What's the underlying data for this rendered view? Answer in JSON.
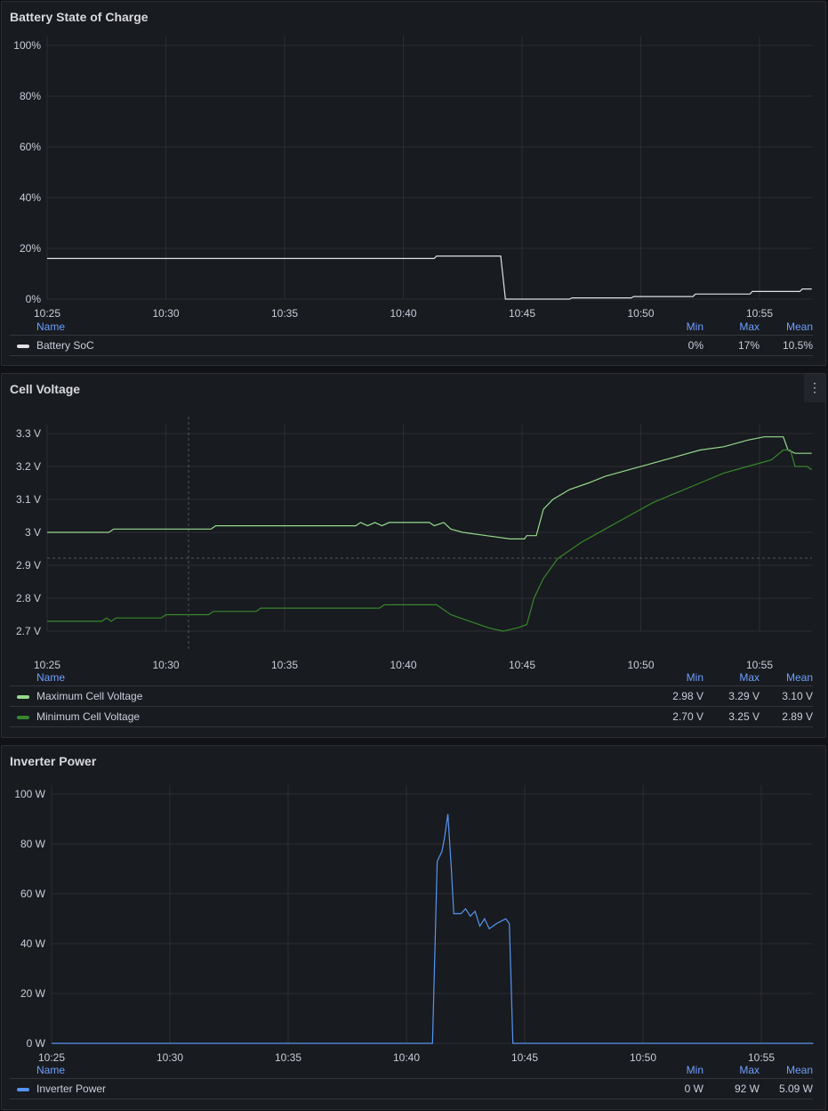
{
  "chart_data": [
    {
      "type": "line",
      "title": "Battery State of Charge",
      "xlabel": "",
      "ylabel": "",
      "x_ticks": [
        "10:25",
        "10:30",
        "10:35",
        "10:40",
        "10:45",
        "10:50",
        "10:55"
      ],
      "y_ticks": [
        "0%",
        "20%",
        "40%",
        "60%",
        "80%",
        "100%"
      ],
      "ylim": [
        0,
        100
      ],
      "x_unit": "minutes since 10:25",
      "xlim": [
        0,
        32.2
      ],
      "series": [
        {
          "name": "Battery SoC",
          "color": "#e0e0e6",
          "points": [
            [
              0,
              16
            ],
            [
              16.3,
              16
            ],
            [
              16.4,
              17
            ],
            [
              19.1,
              17
            ],
            [
              19.3,
              0
            ],
            [
              22,
              0
            ],
            [
              22.1,
              0.5
            ],
            [
              24.6,
              0.5
            ],
            [
              24.7,
              1
            ],
            [
              27.2,
              1
            ],
            [
              27.3,
              2
            ],
            [
              29.6,
              2
            ],
            [
              29.7,
              3
            ],
            [
              31.7,
              3
            ],
            [
              31.8,
              4
            ],
            [
              32.2,
              4
            ]
          ]
        }
      ],
      "legend": {
        "headers": [
          "Name",
          "Min",
          "Max",
          "Mean"
        ],
        "rows": [
          {
            "name": "Battery SoC",
            "min": "0%",
            "max": "17%",
            "mean": "10.5%"
          }
        ]
      }
    },
    {
      "type": "line",
      "title": "Cell Voltage",
      "x_ticks": [
        "10:25",
        "10:30",
        "10:35",
        "10:40",
        "10:45",
        "10:50",
        "10:55"
      ],
      "y_ticks": [
        "2.7 V",
        "2.8 V",
        "2.9 V",
        "3 V",
        "3.1 V",
        "3.2 V",
        "3.3 V"
      ],
      "ylim": [
        2.67,
        3.35
      ],
      "xlim": [
        0,
        32.2
      ],
      "series": [
        {
          "name": "Maximum Cell Voltage",
          "color": "#96d98d",
          "points": [
            [
              0,
              3.0
            ],
            [
              2.6,
              3.0
            ],
            [
              2.8,
              3.01
            ],
            [
              6.9,
              3.01
            ],
            [
              7.1,
              3.02
            ],
            [
              13,
              3.02
            ],
            [
              13.2,
              3.03
            ],
            [
              13.5,
              3.02
            ],
            [
              13.8,
              3.03
            ],
            [
              14.1,
              3.02
            ],
            [
              14.4,
              3.03
            ],
            [
              16.1,
              3.03
            ],
            [
              16.3,
              3.02
            ],
            [
              16.7,
              3.03
            ],
            [
              17,
              3.01
            ],
            [
              17.5,
              3.0
            ],
            [
              18.5,
              2.99
            ],
            [
              19.5,
              2.98
            ],
            [
              20.1,
              2.98
            ],
            [
              20.2,
              2.99
            ],
            [
              20.6,
              2.99
            ],
            [
              20.9,
              3.07
            ],
            [
              21.3,
              3.1
            ],
            [
              22,
              3.13
            ],
            [
              22.8,
              3.15
            ],
            [
              23.5,
              3.17
            ],
            [
              24.5,
              3.19
            ],
            [
              25.5,
              3.21
            ],
            [
              26.5,
              3.23
            ],
            [
              27.5,
              3.25
            ],
            [
              28.5,
              3.26
            ],
            [
              29.5,
              3.28
            ],
            [
              30.2,
              3.29
            ],
            [
              31,
              3.29
            ],
            [
              31.2,
              3.25
            ],
            [
              31.5,
              3.24
            ],
            [
              32.2,
              3.24
            ]
          ]
        },
        {
          "name": "Minimum Cell Voltage",
          "color": "#37872d",
          "points": [
            [
              0,
              2.73
            ],
            [
              2.3,
              2.73
            ],
            [
              2.5,
              2.74
            ],
            [
              2.7,
              2.73
            ],
            [
              2.9,
              2.74
            ],
            [
              4.8,
              2.74
            ],
            [
              5,
              2.75
            ],
            [
              6.8,
              2.75
            ],
            [
              7,
              2.76
            ],
            [
              8.8,
              2.76
            ],
            [
              9,
              2.77
            ],
            [
              14,
              2.77
            ],
            [
              14.2,
              2.78
            ],
            [
              16.4,
              2.78
            ],
            [
              17,
              2.75
            ],
            [
              17.8,
              2.73
            ],
            [
              18.6,
              2.71
            ],
            [
              19.2,
              2.7
            ],
            [
              19.8,
              2.71
            ],
            [
              20.2,
              2.72
            ],
            [
              20.5,
              2.8
            ],
            [
              20.9,
              2.86
            ],
            [
              21.5,
              2.92
            ],
            [
              22.5,
              2.97
            ],
            [
              23.5,
              3.01
            ],
            [
              24.5,
              3.05
            ],
            [
              25.5,
              3.09
            ],
            [
              26.5,
              3.12
            ],
            [
              27.5,
              3.15
            ],
            [
              28.5,
              3.18
            ],
            [
              29.5,
              3.2
            ],
            [
              30.5,
              3.22
            ],
            [
              31,
              3.25
            ],
            [
              31.3,
              3.25
            ],
            [
              31.5,
              3.2
            ],
            [
              32,
              3.2
            ],
            [
              32.2,
              3.19
            ]
          ]
        }
      ],
      "legend": {
        "headers": [
          "Name",
          "Min",
          "Max",
          "Mean"
        ],
        "rows": [
          {
            "name": "Maximum Cell Voltage",
            "min": "2.98 V",
            "max": "3.29 V",
            "mean": "3.10 V"
          },
          {
            "name": "Minimum Cell Voltage",
            "min": "2.70 V",
            "max": "3.25 V",
            "mean": "2.89 V"
          }
        ]
      }
    },
    {
      "type": "line",
      "title": "Inverter Power",
      "x_ticks": [
        "10:25",
        "10:30",
        "10:35",
        "10:40",
        "10:45",
        "10:50",
        "10:55"
      ],
      "y_ticks": [
        "0 W",
        "20 W",
        "40 W",
        "60 W",
        "80 W",
        "100 W"
      ],
      "ylim": [
        0,
        100
      ],
      "xlim": [
        0,
        32.2
      ],
      "series": [
        {
          "name": "Inverter Power",
          "color": "#5794f2",
          "points": [
            [
              0,
              0
            ],
            [
              16.1,
              0
            ],
            [
              16.3,
              73
            ],
            [
              16.5,
              77
            ],
            [
              16.6,
              82
            ],
            [
              16.75,
              92
            ],
            [
              16.9,
              70
            ],
            [
              17,
              52
            ],
            [
              17.3,
              52
            ],
            [
              17.5,
              54
            ],
            [
              17.7,
              51
            ],
            [
              17.9,
              53
            ],
            [
              18.1,
              47
            ],
            [
              18.3,
              50
            ],
            [
              18.5,
              46
            ],
            [
              18.8,
              48
            ],
            [
              19,
              49
            ],
            [
              19.2,
              50
            ],
            [
              19.35,
              48
            ],
            [
              19.5,
              0
            ],
            [
              32.2,
              0
            ]
          ]
        }
      ],
      "legend": {
        "headers": [
          "Name",
          "Min",
          "Max",
          "Mean"
        ],
        "rows": [
          {
            "name": "Inverter Power",
            "min": "0 W",
            "max": "92 W",
            "mean": "5.09 W"
          }
        ]
      }
    }
  ],
  "panels": [
    {
      "title": "Battery State of Charge"
    },
    {
      "title": "Cell Voltage",
      "menu": "⋮"
    },
    {
      "title": "Inverter Power"
    }
  ]
}
